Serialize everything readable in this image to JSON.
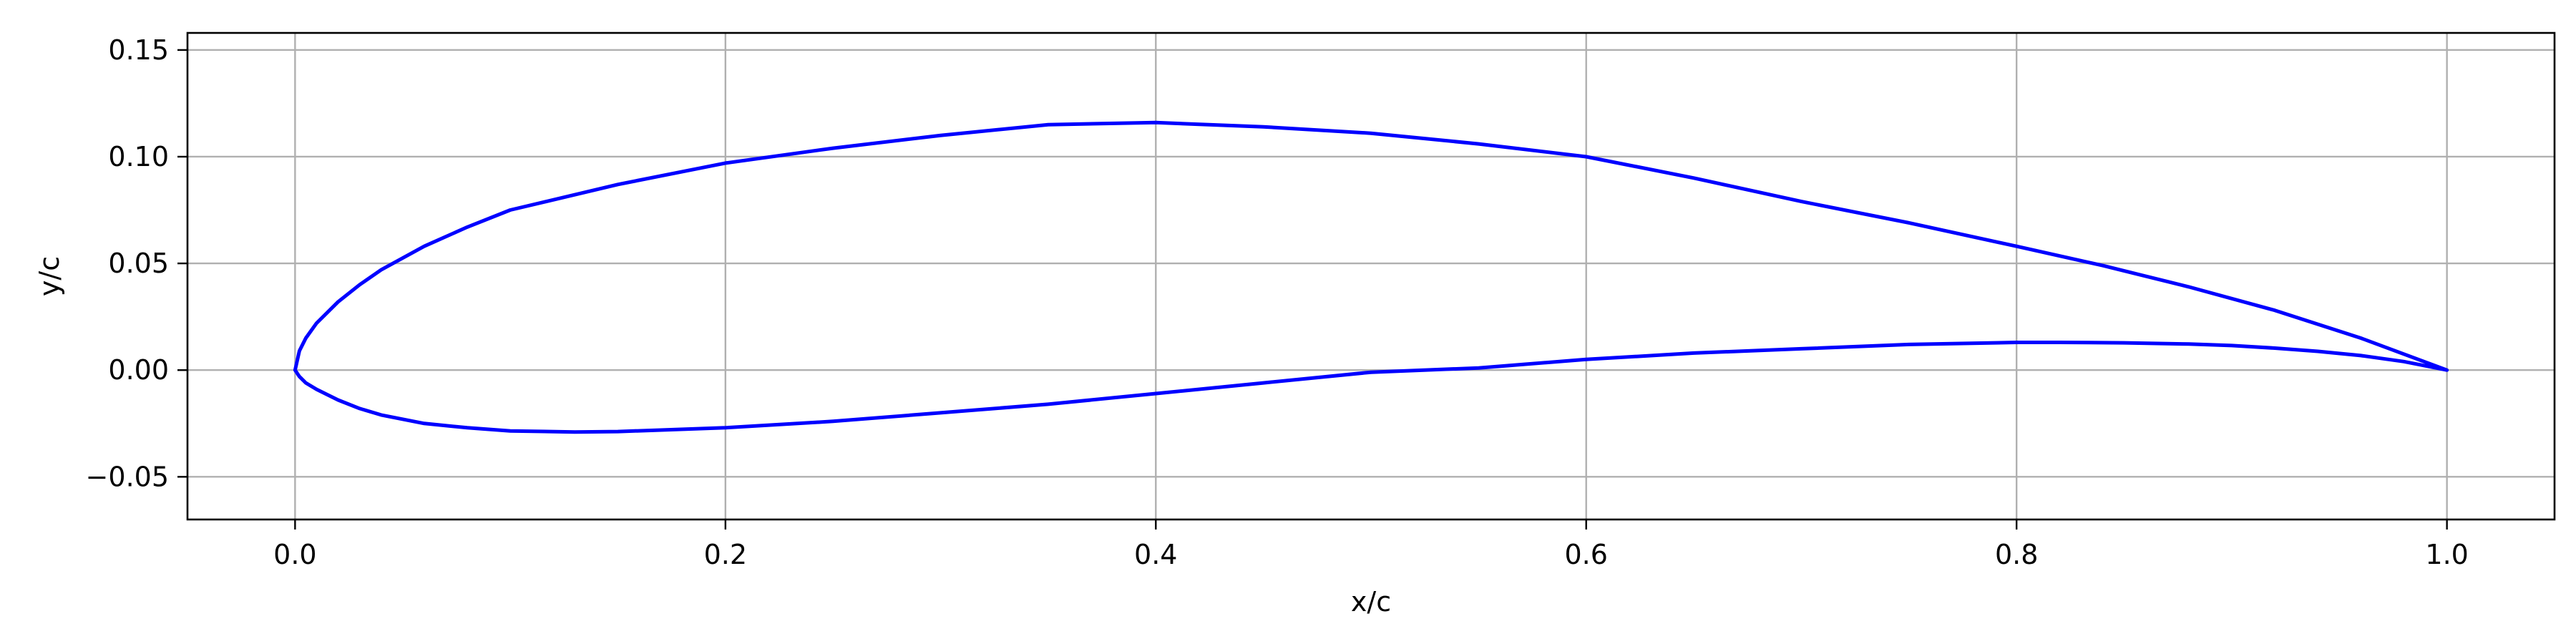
{
  "chart_data": {
    "type": "line",
    "xlabel": "x/c",
    "ylabel": "y/c",
    "xlim": [
      -0.05,
      1.05
    ],
    "ylim": [
      -0.07,
      0.158
    ],
    "xticks": [
      0.0,
      0.2,
      0.4,
      0.6,
      0.8,
      1.0
    ],
    "xtick_labels": [
      "0.0",
      "0.2",
      "0.4",
      "0.6",
      "0.8",
      "1.0"
    ],
    "yticks": [
      -0.05,
      0.0,
      0.05,
      0.1,
      0.15
    ],
    "ytick_labels": [
      "−0.05",
      "0.00",
      "0.05",
      "0.10",
      "0.15"
    ],
    "grid": true,
    "series": [
      {
        "color": "#0000ff",
        "x": [
          1.0,
          0.96,
          0.92,
          0.88,
          0.84,
          0.8,
          0.75,
          0.7,
          0.65,
          0.6,
          0.55,
          0.5,
          0.45,
          0.4,
          0.35,
          0.3,
          0.25,
          0.2,
          0.15,
          0.1,
          0.08,
          0.06,
          0.04,
          0.03,
          0.02,
          0.01,
          0.005,
          0.002,
          0.0,
          0.002,
          0.005,
          0.01,
          0.02,
          0.03,
          0.04,
          0.06,
          0.08,
          0.1,
          0.13,
          0.15,
          0.2,
          0.25,
          0.3,
          0.35,
          0.4,
          0.45,
          0.5,
          0.55,
          0.6,
          0.65,
          0.7,
          0.75,
          0.8,
          0.82,
          0.85,
          0.88,
          0.9,
          0.92,
          0.94,
          0.96,
          0.98,
          1.0
        ],
        "y": [
          0.0,
          0.015,
          0.028,
          0.039,
          0.049,
          0.058,
          0.069,
          0.079,
          0.09,
          0.1,
          0.106,
          0.111,
          0.114,
          0.116,
          0.115,
          0.11,
          0.104,
          0.097,
          0.087,
          0.075,
          0.067,
          0.058,
          0.047,
          0.04,
          0.032,
          0.022,
          0.015,
          0.009,
          0.0,
          -0.003,
          -0.006,
          -0.009,
          -0.014,
          -0.018,
          -0.021,
          -0.025,
          -0.027,
          -0.0285,
          -0.029,
          -0.0288,
          -0.027,
          -0.024,
          -0.02,
          -0.016,
          -0.011,
          -0.006,
          -0.001,
          0.001,
          0.005,
          0.008,
          0.01,
          0.012,
          0.013,
          0.013,
          0.0128,
          0.0122,
          0.0115,
          0.0103,
          0.0088,
          0.0068,
          0.004,
          0.0
        ]
      }
    ]
  }
}
